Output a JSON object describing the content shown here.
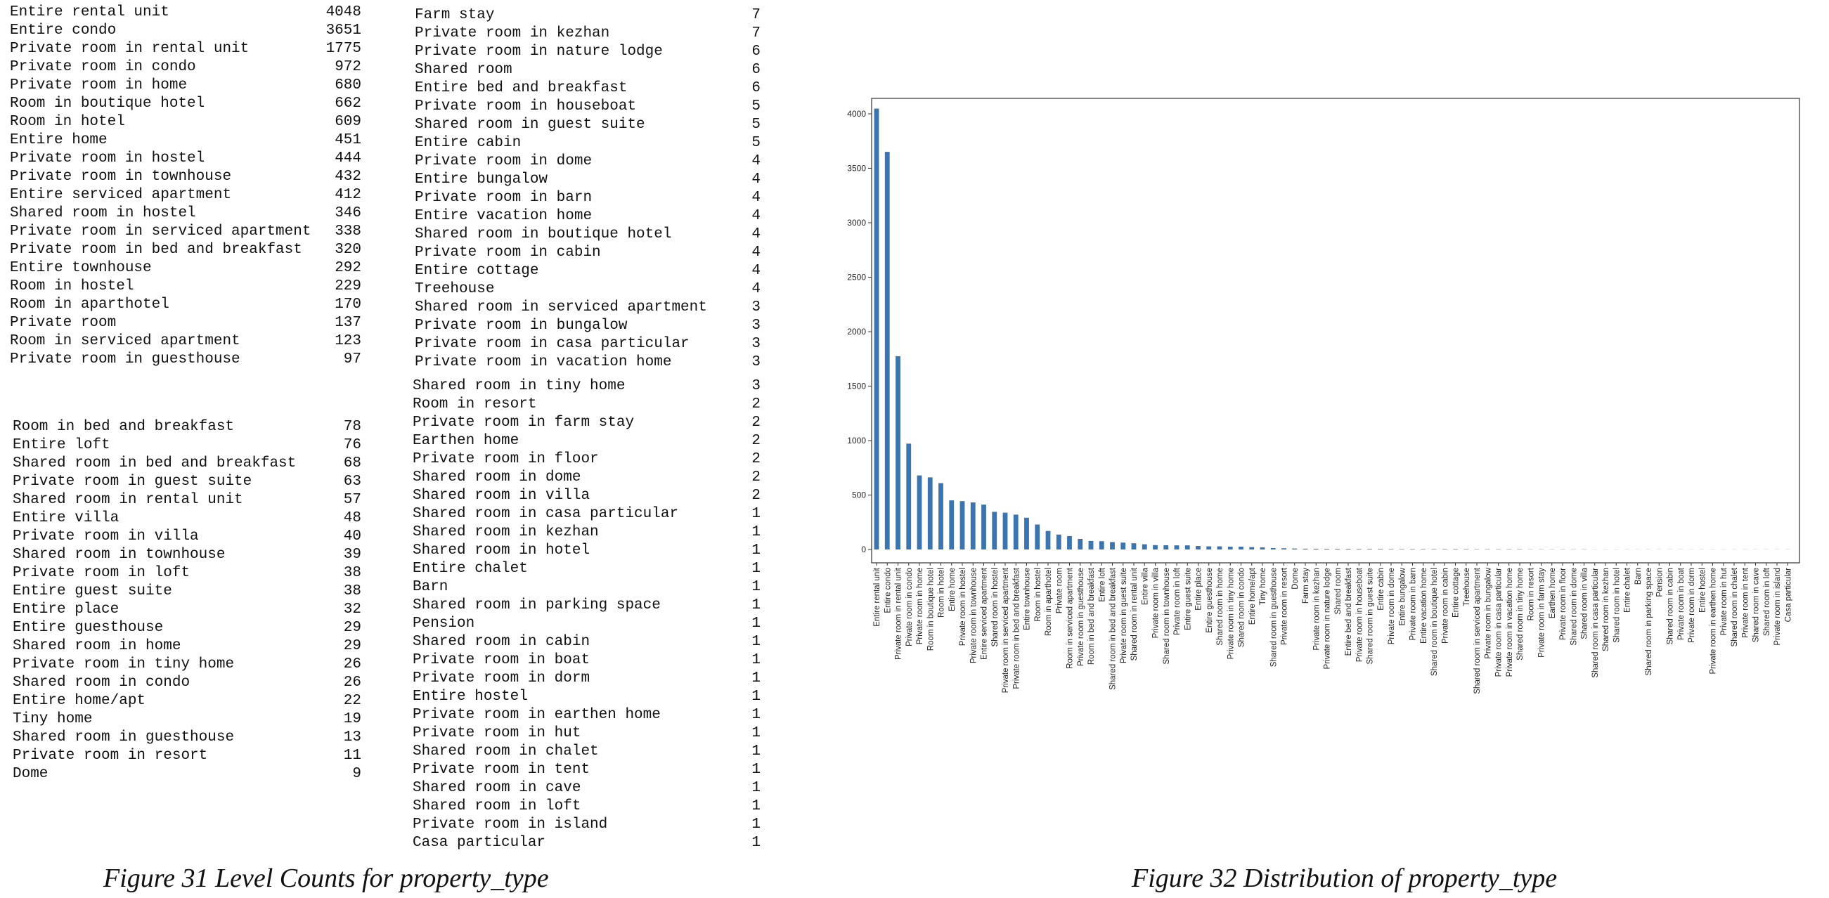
{
  "tables": [
    [
      [
        "Entire rental unit",
        "4048"
      ],
      [
        "Entire condo",
        "3651"
      ],
      [
        "Private room in rental unit",
        "1775"
      ],
      [
        "Private room in condo",
        "972"
      ],
      [
        "Private room in home",
        "680"
      ],
      [
        "Room in boutique hotel",
        "662"
      ],
      [
        "Room in hotel",
        "609"
      ],
      [
        "Entire home",
        "451"
      ],
      [
        "Private room in hostel",
        "444"
      ],
      [
        "Private room in townhouse",
        "432"
      ],
      [
        "Entire serviced apartment",
        "412"
      ],
      [
        "Shared room in hostel",
        "346"
      ],
      [
        "Private room in serviced apartment",
        "338"
      ],
      [
        "Private room in bed and breakfast",
        "320"
      ],
      [
        "Entire townhouse",
        "292"
      ],
      [
        "Room in hostel",
        "229"
      ],
      [
        "Room in aparthotel",
        "170"
      ],
      [
        "Private room",
        "137"
      ],
      [
        "Room in serviced apartment",
        "123"
      ],
      [
        "Private room in guesthouse",
        "97"
      ]
    ],
    [
      [
        "Room in bed and breakfast",
        "78"
      ],
      [
        "Entire loft",
        "76"
      ],
      [
        "Shared room in bed and breakfast",
        "68"
      ],
      [
        "Private room in guest suite",
        "63"
      ],
      [
        "Shared room in rental unit",
        "57"
      ],
      [
        "Entire villa",
        "48"
      ],
      [
        "Private room in villa",
        "40"
      ],
      [
        "Shared room in townhouse",
        "39"
      ],
      [
        "Private room in loft",
        "38"
      ],
      [
        "Entire guest suite",
        "38"
      ],
      [
        "Entire place",
        "32"
      ],
      [
        "Entire guesthouse",
        "29"
      ],
      [
        "Shared room in home",
        "29"
      ],
      [
        "Private room in tiny home",
        "26"
      ],
      [
        "Shared room in condo",
        "26"
      ],
      [
        "Entire home/apt",
        "22"
      ],
      [
        "Tiny home",
        "19"
      ],
      [
        "Shared room in guesthouse",
        "13"
      ],
      [
        "Private room in resort",
        "11"
      ],
      [
        "Dome",
        "9"
      ]
    ],
    [
      [
        "Farm stay",
        "7"
      ],
      [
        "Private room in kezhan",
        "7"
      ],
      [
        "Private room in nature lodge",
        "6"
      ],
      [
        "Shared room",
        "6"
      ],
      [
        "Entire bed and breakfast",
        "6"
      ],
      [
        "Private room in houseboat",
        "5"
      ],
      [
        "Shared room in guest suite",
        "5"
      ],
      [
        "Entire cabin",
        "5"
      ],
      [
        "Private room in dome",
        "4"
      ],
      [
        "Entire bungalow",
        "4"
      ],
      [
        "Private room in barn",
        "4"
      ],
      [
        "Entire vacation home",
        "4"
      ],
      [
        "Shared room in boutique hotel",
        "4"
      ],
      [
        "Private room in cabin",
        "4"
      ],
      [
        "Entire cottage",
        "4"
      ],
      [
        "Treehouse",
        "4"
      ],
      [
        "Shared room in serviced apartment",
        "3"
      ],
      [
        "Private room in bungalow",
        "3"
      ],
      [
        "Private room in casa particular",
        "3"
      ],
      [
        "Private room in vacation home",
        "3"
      ]
    ],
    [
      [
        "Shared room in tiny home",
        "3"
      ],
      [
        "Room in resort",
        "2"
      ],
      [
        "Private room in farm stay",
        "2"
      ],
      [
        "Earthen home",
        "2"
      ],
      [
        "Private room in floor",
        "2"
      ],
      [
        "Shared room in dome",
        "2"
      ],
      [
        "Shared room in villa",
        "2"
      ],
      [
        "Shared room in casa particular",
        "1"
      ],
      [
        "Shared room in kezhan",
        "1"
      ],
      [
        "Shared room in hotel",
        "1"
      ],
      [
        "Entire chalet",
        "1"
      ],
      [
        "Barn",
        "1"
      ],
      [
        "Shared room in parking space",
        "1"
      ],
      [
        "Pension",
        "1"
      ],
      [
        "Shared room in cabin",
        "1"
      ],
      [
        "Private room in boat",
        "1"
      ],
      [
        "Private room in dorm",
        "1"
      ],
      [
        "Entire hostel",
        "1"
      ],
      [
        "Private room in earthen home",
        "1"
      ],
      [
        "Private room in hut",
        "1"
      ],
      [
        "Shared room in chalet",
        "1"
      ],
      [
        "Private room in tent",
        "1"
      ],
      [
        "Shared room in cave",
        "1"
      ],
      [
        "Shared room in loft",
        "1"
      ],
      [
        "Private room in island",
        "1"
      ],
      [
        "Casa particular",
        "1"
      ]
    ]
  ],
  "captions": {
    "left": "Figure 31 Level Counts for property_type",
    "right": "Figure 32 Distribution of property_type"
  },
  "chart_data": {
    "type": "bar",
    "color": "#3b75af",
    "grid": false,
    "ylim": [
      0,
      4200
    ],
    "yticks": [
      0,
      500,
      1000,
      1500,
      2000,
      2500,
      3000,
      3500,
      4000
    ],
    "categories": [
      "Entire rental unit",
      "Entire condo",
      "Private room in rental unit",
      "Private room in condo",
      "Private room in home",
      "Room in boutique hotel",
      "Room in hotel",
      "Entire home",
      "Private room in hostel",
      "Private room in townhouse",
      "Entire serviced apartment",
      "Shared room in hostel",
      "Private room in serviced apartment",
      "Private room in bed and breakfast",
      "Entire townhouse",
      "Room in hostel",
      "Room in aparthotel",
      "Private room",
      "Room in serviced apartment",
      "Private room in guesthouse",
      "Room in bed and breakfast",
      "Entire loft",
      "Shared room in bed and breakfast",
      "Private room in guest suite",
      "Shared room in rental unit",
      "Entire villa",
      "Private room in villa",
      "Shared room in townhouse",
      "Private room in loft",
      "Entire guest suite",
      "Entire place",
      "Entire guesthouse",
      "Shared room in home",
      "Private room in tiny home",
      "Shared room in condo",
      "Entire home/apt",
      "Tiny home",
      "Shared room in guesthouse",
      "Private room in resort",
      "Dome",
      "Farm stay",
      "Private room in kezhan",
      "Private room in nature lodge",
      "Shared room",
      "Entire bed and breakfast",
      "Private room in houseboat",
      "Shared room in guest suite",
      "Entire cabin",
      "Private room in dome",
      "Entire bungalow",
      "Private room in barn",
      "Entire vacation home",
      "Shared room in boutique hotel",
      "Private room in cabin",
      "Entire cottage",
      "Treehouse",
      "Shared room in serviced apartment",
      "Private room in bungalow",
      "Private room in casa particular",
      "Private room in vacation home",
      "Shared room in tiny home",
      "Room in resort",
      "Private room in farm stay",
      "Earthen home",
      "Private room in floor",
      "Shared room in dome",
      "Shared room in villa",
      "Shared room in casa particular",
      "Shared room in kezhan",
      "Shared room in hotel",
      "Entire chalet",
      "Barn",
      "Shared room in parking space",
      "Pension",
      "Shared room in cabin",
      "Private room in boat",
      "Private room in dorm",
      "Entire hostel",
      "Private room in earthen home",
      "Private room in hut",
      "Shared room in chalet",
      "Private room in tent",
      "Shared room in cave",
      "Shared room in loft",
      "Private room in island",
      "Casa particular"
    ],
    "values": [
      4048,
      3651,
      1775,
      972,
      680,
      662,
      609,
      451,
      444,
      432,
      412,
      346,
      338,
      320,
      292,
      229,
      170,
      137,
      123,
      97,
      78,
      76,
      68,
      63,
      57,
      48,
      40,
      39,
      38,
      38,
      32,
      29,
      29,
      26,
      26,
      22,
      19,
      13,
      11,
      9,
      7,
      7,
      6,
      6,
      6,
      5,
      5,
      5,
      4,
      4,
      4,
      4,
      4,
      4,
      4,
      4,
      3,
      3,
      3,
      3,
      3,
      2,
      2,
      2,
      2,
      2,
      2,
      1,
      1,
      1,
      1,
      1,
      1,
      1,
      1,
      1,
      1,
      1,
      1,
      1,
      1,
      1,
      1,
      1,
      1,
      1
    ]
  }
}
